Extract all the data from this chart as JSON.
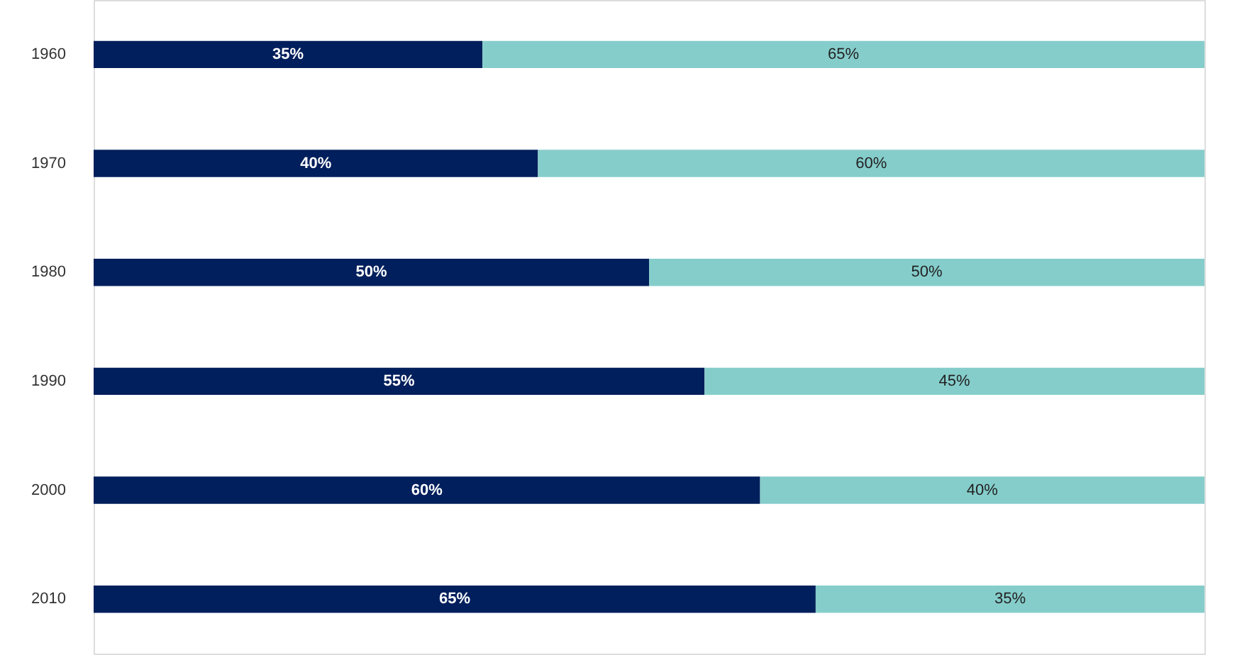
{
  "chart_data": {
    "type": "bar",
    "orientation": "horizontal",
    "stacked": true,
    "tick_labels": "y",
    "categories": [
      "1960",
      "1970",
      "1980",
      "1990",
      "2000",
      "2010"
    ],
    "series": [
      {
        "color": "#001f5c",
        "values": [
          35,
          40,
          50,
          55,
          60,
          65
        ],
        "value_labels": [
          "35%",
          "40%",
          "50%",
          "55%",
          "60%",
          "65%"
        ]
      },
      {
        "color": "#85cdcb",
        "values": [
          65,
          60,
          50,
          45,
          40,
          35
        ],
        "value_labels": [
          "65%",
          "60%",
          "50%",
          "45%",
          "40%",
          "35%"
        ]
      }
    ]
  }
}
